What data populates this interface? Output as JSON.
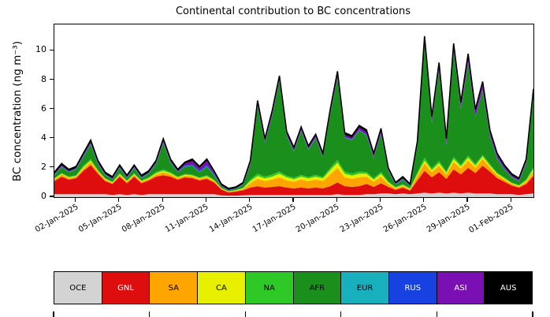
{
  "chart_data": {
    "type": "area",
    "stacked": true,
    "title": "Continental contribution to BC concentrations",
    "ylabel": "BC concentration (ng m⁻³)",
    "xlabel": "",
    "grid": false,
    "legend_position": "bottom",
    "ylim": [
      0,
      11.8
    ],
    "yticks": [
      0,
      2,
      4,
      6,
      8,
      10
    ],
    "x_range_days": [
      0,
      33
    ],
    "x_step_days": 0.5,
    "xtick_positions_days": [
      1.5,
      4.5,
      7.5,
      10.5,
      13.5,
      16.5,
      19.5,
      22.5,
      25.5,
      28.5,
      31.5
    ],
    "xtick_labels": [
      "02-Jan-2025",
      "05-Jan-2025",
      "08-Jan-2025",
      "11-Jan-2025",
      "14-Jan-2025",
      "17-Jan-2025",
      "20-Jan-2025",
      "23-Jan-2025",
      "26-Jan-2025",
      "29-Jan-2025",
      "01-Feb-2025"
    ],
    "top_edge_color": "#000000",
    "series": [
      {
        "name": "OCE",
        "color": "#d3d3d3",
        "label_color": "#000000",
        "values": [
          0.2,
          0.2,
          0.2,
          0.2,
          0.2,
          0.2,
          0.2,
          0.2,
          0.15,
          0.2,
          0.15,
          0.2,
          0.15,
          0.2,
          0.2,
          0.2,
          0.2,
          0.2,
          0.2,
          0.2,
          0.2,
          0.2,
          0.2,
          0.12,
          0.1,
          0.1,
          0.12,
          0.15,
          0.15,
          0.15,
          0.15,
          0.15,
          0.15,
          0.15,
          0.15,
          0.15,
          0.15,
          0.15,
          0.15,
          0.2,
          0.15,
          0.15,
          0.15,
          0.2,
          0.2,
          0.25,
          0.25,
          0.2,
          0.25,
          0.2,
          0.25,
          0.3,
          0.25,
          0.3,
          0.25,
          0.3,
          0.25,
          0.3,
          0.25,
          0.25,
          0.25,
          0.2,
          0.2,
          0.2,
          0.15,
          0.2,
          0.25
        ]
      },
      {
        "name": "GNL",
        "color": "#df0e0e",
        "label_color": "#ffffff",
        "values": [
          0.9,
          1.2,
          1.0,
          1.1,
          1.6,
          2.0,
          1.4,
          0.9,
          0.75,
          1.2,
          0.8,
          1.2,
          0.8,
          0.95,
          1.2,
          1.3,
          1.2,
          1.0,
          1.15,
          1.1,
          0.95,
          1.05,
          0.8,
          0.4,
          0.22,
          0.28,
          0.35,
          0.5,
          0.6,
          0.5,
          0.55,
          0.6,
          0.5,
          0.45,
          0.5,
          0.45,
          0.5,
          0.45,
          0.6,
          0.8,
          0.6,
          0.55,
          0.6,
          0.7,
          0.5,
          0.7,
          0.45,
          0.3,
          0.4,
          0.25,
          0.9,
          1.5,
          1.1,
          1.4,
          1.0,
          1.6,
          1.3,
          1.7,
          1.4,
          1.9,
          1.5,
          1.1,
          0.85,
          0.6,
          0.5,
          0.7,
          1.2
        ]
      },
      {
        "name": "SA",
        "color": "#ffa500",
        "label_color": "#000000",
        "values": [
          0.1,
          0.15,
          0.1,
          0.1,
          0.15,
          0.2,
          0.15,
          0.1,
          0.08,
          0.12,
          0.1,
          0.12,
          0.1,
          0.1,
          0.15,
          0.2,
          0.15,
          0.1,
          0.12,
          0.12,
          0.1,
          0.12,
          0.1,
          0.05,
          0.04,
          0.05,
          0.08,
          0.3,
          0.5,
          0.45,
          0.5,
          0.6,
          0.5,
          0.45,
          0.55,
          0.5,
          0.55,
          0.5,
          0.8,
          1.0,
          0.6,
          0.55,
          0.6,
          0.5,
          0.35,
          0.45,
          0.2,
          0.1,
          0.12,
          0.08,
          0.3,
          0.5,
          0.35,
          0.45,
          0.3,
          0.5,
          0.4,
          0.5,
          0.35,
          0.45,
          0.3,
          0.2,
          0.15,
          0.1,
          0.08,
          0.15,
          0.3
        ]
      },
      {
        "name": "CA",
        "color": "#e8f000",
        "label_color": "#000000",
        "values": [
          0.05,
          0.05,
          0.05,
          0.05,
          0.1,
          0.1,
          0.05,
          0.05,
          0.04,
          0.06,
          0.05,
          0.06,
          0.05,
          0.05,
          0.08,
          0.1,
          0.08,
          0.05,
          0.06,
          0.06,
          0.05,
          0.06,
          0.05,
          0.03,
          0.02,
          0.03,
          0.05,
          0.15,
          0.2,
          0.18,
          0.2,
          0.25,
          0.2,
          0.18,
          0.2,
          0.18,
          0.2,
          0.18,
          0.3,
          0.35,
          0.25,
          0.22,
          0.25,
          0.2,
          0.15,
          0.2,
          0.1,
          0.05,
          0.06,
          0.04,
          0.12,
          0.2,
          0.15,
          0.18,
          0.12,
          0.2,
          0.15,
          0.2,
          0.15,
          0.18,
          0.12,
          0.1,
          0.08,
          0.05,
          0.05,
          0.08,
          0.15
        ]
      },
      {
        "name": "NA",
        "color": "#2ec926",
        "label_color": "#000000",
        "values": [
          0.05,
          0.05,
          0.05,
          0.05,
          0.1,
          0.1,
          0.05,
          0.05,
          0.04,
          0.06,
          0.05,
          0.06,
          0.05,
          0.05,
          0.08,
          0.1,
          0.08,
          0.05,
          0.06,
          0.06,
          0.05,
          0.06,
          0.05,
          0.03,
          0.02,
          0.03,
          0.05,
          0.1,
          0.15,
          0.12,
          0.15,
          0.15,
          0.12,
          0.1,
          0.12,
          0.1,
          0.12,
          0.1,
          0.15,
          0.2,
          0.15,
          0.13,
          0.15,
          0.12,
          0.1,
          0.12,
          0.08,
          0.05,
          0.06,
          0.05,
          0.1,
          0.2,
          0.12,
          0.15,
          0.1,
          0.15,
          0.12,
          0.15,
          0.12,
          0.12,
          0.1,
          0.08,
          0.06,
          0.05,
          0.05,
          0.08,
          0.15
        ]
      },
      {
        "name": "AFR",
        "color": "#1b8f1b",
        "label_color": "#000000",
        "values": [
          0.2,
          0.4,
          0.3,
          0.4,
          0.6,
          1.0,
          0.4,
          0.2,
          0.15,
          0.35,
          0.15,
          0.35,
          0.15,
          0.25,
          0.55,
          1.8,
          0.65,
          0.3,
          0.5,
          0.6,
          0.35,
          0.6,
          0.3,
          0.1,
          0.06,
          0.07,
          0.2,
          1.0,
          4.6,
          2.3,
          4.0,
          6.2,
          2.7,
          1.8,
          3.0,
          1.85,
          2.5,
          1.35,
          3.7,
          5.6,
          2.3,
          2.3,
          2.8,
          2.5,
          1.4,
          2.6,
          0.7,
          0.15,
          0.3,
          0.12,
          1.8,
          7.8,
          3.1,
          6.2,
          1.8,
          7.2,
          3.8,
          6.3,
          3.2,
          4.4,
          1.9,
          0.95,
          0.55,
          0.35,
          0.25,
          1.1,
          4.9
        ]
      },
      {
        "name": "EUR",
        "color": "#17b0bc",
        "label_color": "#000000",
        "values": [
          0.02,
          0.02,
          0.02,
          0.02,
          0.02,
          0.02,
          0.02,
          0.02,
          0.02,
          0.02,
          0.02,
          0.02,
          0.02,
          0.02,
          0.02,
          0.02,
          0.02,
          0.02,
          0.02,
          0.03,
          0.03,
          0.03,
          0.03,
          0.02,
          0.01,
          0.01,
          0.01,
          0.02,
          0.02,
          0.02,
          0.02,
          0.02,
          0.02,
          0.02,
          0.02,
          0.02,
          0.02,
          0.02,
          0.02,
          0.02,
          0.02,
          0.02,
          0.02,
          0.02,
          0.02,
          0.02,
          0.02,
          0.02,
          0.02,
          0.02,
          0.02,
          0.03,
          0.02,
          0.03,
          0.02,
          0.03,
          0.02,
          0.03,
          0.02,
          0.02,
          0.02,
          0.02,
          0.02,
          0.02,
          0.02,
          0.02,
          0.02
        ]
      },
      {
        "name": "RUS",
        "color": "#1741e0",
        "label_color": "#ffffff",
        "values": [
          0.03,
          0.03,
          0.03,
          0.03,
          0.03,
          0.03,
          0.03,
          0.03,
          0.03,
          0.03,
          0.03,
          0.03,
          0.03,
          0.03,
          0.03,
          0.03,
          0.03,
          0.03,
          0.04,
          0.08,
          0.07,
          0.09,
          0.05,
          0.03,
          0.02,
          0.02,
          0.02,
          0.03,
          0.03,
          0.03,
          0.03,
          0.03,
          0.03,
          0.03,
          0.03,
          0.03,
          0.03,
          0.03,
          0.03,
          0.03,
          0.03,
          0.03,
          0.03,
          0.03,
          0.03,
          0.03,
          0.03,
          0.03,
          0.03,
          0.03,
          0.03,
          0.04,
          0.03,
          0.04,
          0.03,
          0.04,
          0.03,
          0.04,
          0.03,
          0.03,
          0.03,
          0.03,
          0.03,
          0.03,
          0.03,
          0.03,
          0.03
        ]
      },
      {
        "name": "ASI",
        "color": "#7a10b4",
        "label_color": "#ffffff",
        "values": [
          0.03,
          0.08,
          0.03,
          0.03,
          0.08,
          0.1,
          0.08,
          0.03,
          0.02,
          0.04,
          0.03,
          0.04,
          0.03,
          0.03,
          0.07,
          0.1,
          0.07,
          0.03,
          0.13,
          0.23,
          0.18,
          0.27,
          0.1,
          0.02,
          0.01,
          0.01,
          0.02,
          0.13,
          0.2,
          0.1,
          0.15,
          0.15,
          0.13,
          0.1,
          0.11,
          0.1,
          0.11,
          0.1,
          0.1,
          0.25,
          0.15,
          0.1,
          0.15,
          0.18,
          0.13,
          0.18,
          0.05,
          0.02,
          0.04,
          0.02,
          0.13,
          0.23,
          0.23,
          0.25,
          0.23,
          0.28,
          0.28,
          0.38,
          0.33,
          0.4,
          0.26,
          0.2,
          0.14,
          0.08,
          0.07,
          0.12,
          0.25
        ]
      },
      {
        "name": "AUS",
        "color": "#000000",
        "label_color": "#ffffff",
        "values": [
          0.12,
          0.12,
          0.12,
          0.12,
          0.12,
          0.15,
          0.12,
          0.12,
          0.12,
          0.12,
          0.12,
          0.12,
          0.12,
          0.12,
          0.12,
          0.15,
          0.12,
          0.12,
          0.12,
          0.12,
          0.12,
          0.12,
          0.12,
          0.1,
          0.1,
          0.1,
          0.1,
          0.12,
          0.15,
          0.15,
          0.15,
          0.15,
          0.15,
          0.12,
          0.12,
          0.12,
          0.12,
          0.12,
          0.15,
          0.15,
          0.15,
          0.15,
          0.15,
          0.15,
          0.12,
          0.15,
          0.12,
          0.08,
          0.12,
          0.09,
          0.15,
          0.2,
          0.15,
          0.2,
          0.15,
          0.2,
          0.15,
          0.2,
          0.15,
          0.15,
          0.12,
          0.12,
          0.12,
          0.12,
          0.1,
          0.12,
          0.15
        ]
      }
    ]
  }
}
